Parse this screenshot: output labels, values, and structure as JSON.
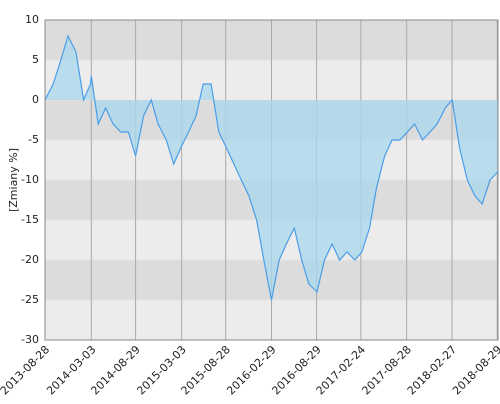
{
  "chart_data": {
    "type": "area",
    "y_label": "[Zmiany %]",
    "x": [
      "2013-08-28",
      "2013-09-30",
      "2013-10-31",
      "2013-11-29",
      "2013-12-31",
      "2014-01-31",
      "2014-02-28",
      "2014-03-03",
      "2014-03-31",
      "2014-04-30",
      "2014-05-30",
      "2014-06-30",
      "2014-07-31",
      "2014-08-29",
      "2014-09-30",
      "2014-10-31",
      "2014-11-28",
      "2014-12-31",
      "2015-01-30",
      "2015-02-27",
      "2015-03-31",
      "2015-04-30",
      "2015-05-29",
      "2015-06-30",
      "2015-07-31",
      "2015-08-31",
      "2015-09-30",
      "2015-10-30",
      "2015-11-30",
      "2015-12-31",
      "2016-01-29",
      "2016-02-29",
      "2016-03-31",
      "2016-04-29",
      "2016-05-31",
      "2016-06-30",
      "2016-07-29",
      "2016-08-31",
      "2016-09-30",
      "2016-10-31",
      "2016-11-30",
      "2016-12-30",
      "2017-01-31",
      "2017-02-28",
      "2017-03-31",
      "2017-04-28",
      "2017-05-31",
      "2017-06-30",
      "2017-07-31",
      "2017-08-31",
      "2017-09-29",
      "2017-10-31",
      "2017-11-30",
      "2017-12-29",
      "2018-01-31",
      "2018-02-28",
      "2018-03-30",
      "2018-04-30",
      "2018-05-31",
      "2018-06-29",
      "2018-07-31",
      "2018-08-31"
    ],
    "values": [
      0,
      2,
      5,
      8,
      6,
      0,
      2,
      3,
      -3,
      -1,
      -3,
      -4,
      -4,
      -7,
      -2,
      0,
      -3,
      -5,
      -8,
      -6,
      -4,
      -2,
      2,
      2,
      -4,
      -6,
      -8,
      -10,
      -12,
      -15,
      -20,
      -25,
      -20,
      -18,
      -16,
      -20,
      -23,
      -24,
      -20,
      -18,
      -20,
      -19,
      -20,
      -19,
      -16,
      -11,
      -7,
      -5,
      -5,
      -4,
      -3,
      -5,
      -4,
      -3,
      -1,
      0,
      -6,
      -10,
      -12,
      -13,
      -10,
      -9
    ],
    "color": "#4a9de8",
    "fill": "#a9d8ee",
    "xlim": [
      "2013-08-28",
      "2018-09-01"
    ],
    "xticks": [
      "2013-08-28",
      "2014-03-03",
      "2014-08-29",
      "2015-03-03",
      "2015-08-28",
      "2016-02-29",
      "2016-08-29",
      "2017-02-24",
      "2017-08-28",
      "2018-02-27",
      "2018-08-29"
    ],
    "ylim": [
      -30,
      10
    ],
    "yticks": [
      -30,
      -25,
      -20,
      -15,
      -10,
      -5,
      0,
      5,
      10
    ],
    "grid": true
  }
}
